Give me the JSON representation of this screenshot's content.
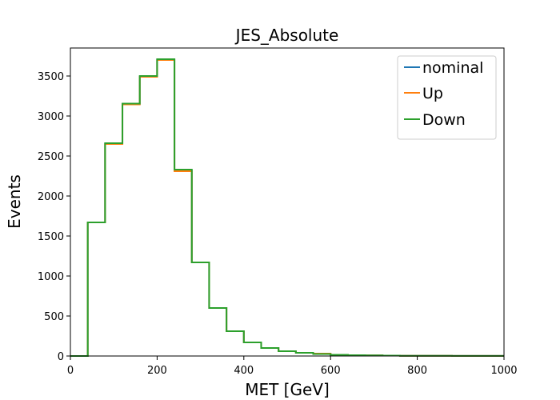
{
  "chart_data": {
    "type": "line",
    "subtype": "step-histogram",
    "title": "JES_Absolute",
    "xlabel": "MET [GeV]",
    "ylabel": "Events",
    "xlim": [
      0,
      1000
    ],
    "ylim": [
      0,
      3850
    ],
    "xticks": [
      0,
      200,
      400,
      600,
      800,
      1000
    ],
    "yticks": [
      0,
      500,
      1000,
      1500,
      2000,
      2500,
      3000,
      3500
    ],
    "grid": false,
    "legend_position": "top-right",
    "bin_edges": [
      0,
      40,
      80,
      120,
      160,
      200,
      240,
      280,
      320,
      360,
      400,
      440,
      480,
      520,
      560,
      600,
      640,
      680,
      720,
      760,
      800,
      840,
      880,
      920,
      960,
      1000
    ],
    "series": [
      {
        "name": "nominal",
        "color": "#1f77b4",
        "values": [
          0,
          1670,
          2655,
          3150,
          3495,
          3705,
          2320,
          1170,
          600,
          310,
          170,
          100,
          60,
          40,
          25,
          15,
          10,
          8,
          5,
          3,
          2,
          2,
          1,
          1,
          1
        ]
      },
      {
        "name": "Up",
        "color": "#ff7f0e",
        "values": [
          0,
          1670,
          2650,
          3145,
          3490,
          3700,
          2310,
          1170,
          600,
          310,
          170,
          100,
          60,
          40,
          30,
          15,
          10,
          8,
          5,
          3,
          2,
          2,
          1,
          1,
          1
        ]
      },
      {
        "name": "Down",
        "color": "#2ca02c",
        "values": [
          0,
          1670,
          2660,
          3155,
          3500,
          3710,
          2330,
          1170,
          600,
          310,
          170,
          100,
          60,
          40,
          25,
          15,
          10,
          8,
          5,
          3,
          2,
          2,
          1,
          1,
          1
        ]
      }
    ]
  }
}
